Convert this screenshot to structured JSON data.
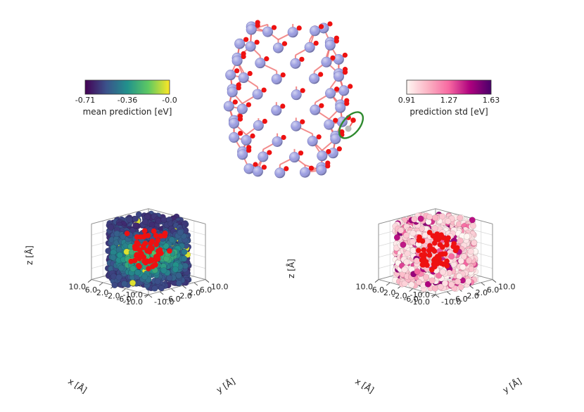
{
  "chart_data": [
    {
      "type": "scatter",
      "subtype": "3d-scatter",
      "panel": "left",
      "xlabel": "x [Å]",
      "ylabel": "y [Å]",
      "zlabel": "z [Å]",
      "x_ticks": [
        "-10.0",
        "-6.0",
        "-2.0",
        "2.0",
        "6.0",
        "10.0"
      ],
      "y_ticks": [
        "-10.0",
        "-6.0",
        "-2.0",
        "2.0",
        "6.0",
        "10.0"
      ],
      "z_ticks": [
        "10.0",
        "6.0",
        "2.0",
        "-2.0",
        "-6.0",
        "-10.0"
      ],
      "xlim": [
        -10,
        10
      ],
      "ylim": [
        -10,
        10
      ],
      "zlim": [
        -10,
        10
      ],
      "colorbar": {
        "label": "mean prediction [eV]",
        "ticks": [
          "-0.71",
          "-0.36",
          "-0.0"
        ],
        "range": [
          -0.71,
          0.0
        ],
        "colormap": "viridis",
        "colors": [
          "#440154",
          "#3b528b",
          "#21918c",
          "#5ec962",
          "#fde725"
        ]
      },
      "grid": true
    },
    {
      "type": "scatter",
      "subtype": "3d-scatter",
      "panel": "right",
      "xlabel": "x [Å]",
      "ylabel": "y [Å]",
      "zlabel": "z [Å]",
      "x_ticks": [
        "-10.0",
        "-6.0",
        "-2.0",
        "2.0",
        "6.0",
        "10.0"
      ],
      "y_ticks": [
        "-10.0",
        "-6.0",
        "-2.0",
        "2.0",
        "6.0",
        "10.0"
      ],
      "z_ticks": [
        "10.0",
        "6.0",
        "2.0",
        "-2.0",
        "-6.0",
        "-10.0"
      ],
      "xlim": [
        -10,
        10
      ],
      "ylim": [
        -10,
        10
      ],
      "zlim": [
        -10,
        10
      ],
      "colorbar": {
        "label": "prediction std [eV]",
        "ticks": [
          "0.91",
          "1.27",
          "1.63"
        ],
        "range": [
          0.91,
          1.63
        ],
        "colormap": "RdPu",
        "colors": [
          "#fff7f3",
          "#fbb4c4",
          "#f768a1",
          "#ae017e",
          "#49006a"
        ]
      },
      "grid": true
    }
  ],
  "structure": {
    "atom_colors": {
      "framework": "#9a9ce0",
      "oxygen": "#ee1111",
      "adsorbate": "#bbbbbb"
    },
    "highlight_color": "#2f8a2f"
  }
}
